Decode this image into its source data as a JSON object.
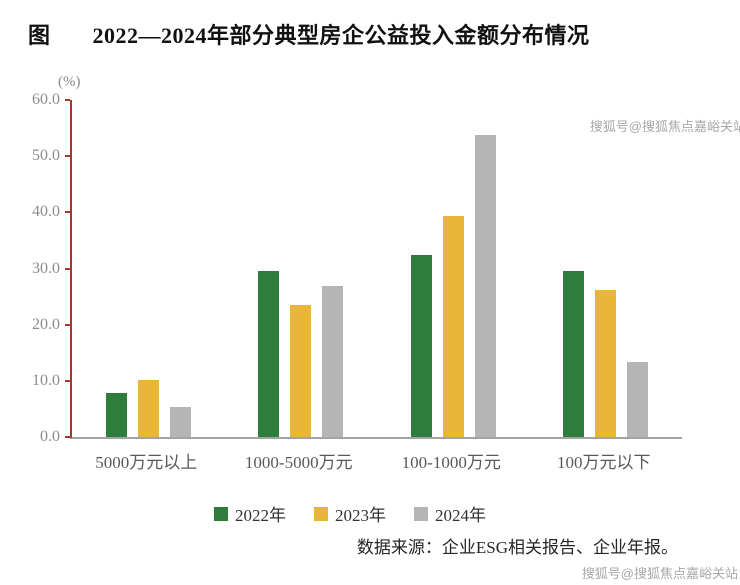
{
  "title": {
    "prefix": "图",
    "text": "2022—2024年部分典型房企公益投入金额分布情况"
  },
  "watermark": "搜狐号@搜狐焦点嘉峪关站",
  "source": "数据来源：企业ESG相关报告、企业年报。",
  "chart_data": {
    "type": "bar",
    "title": "2022—2024年部分典型房企公益投入金额分布情况",
    "unit_label": "(%)",
    "categories": [
      "5000万元以上",
      "1000-5000万元",
      "100-1000万元",
      "100万元以下"
    ],
    "series": [
      {
        "name": "2022年",
        "color": "#2e7d3c",
        "values": [
          7.9,
          29.5,
          32.4,
          29.5
        ]
      },
      {
        "name": "2023年",
        "color": "#e9b637",
        "values": [
          10.2,
          23.5,
          39.4,
          26.2
        ]
      },
      {
        "name": "2024年",
        "color": "#b5b5b5",
        "values": [
          5.3,
          26.9,
          53.8,
          13.4
        ]
      }
    ],
    "ylim": [
      0,
      60
    ],
    "yticks": [
      "60.0",
      "50.0",
      "40.0",
      "30.0",
      "20.0",
      "10.0",
      "0.0"
    ],
    "grid": false,
    "legend_position": "bottom"
  },
  "colors": {
    "axis_y": "#a6372d",
    "axis_x": "#a3a3a3",
    "tick_text": "#8c8c8c"
  }
}
